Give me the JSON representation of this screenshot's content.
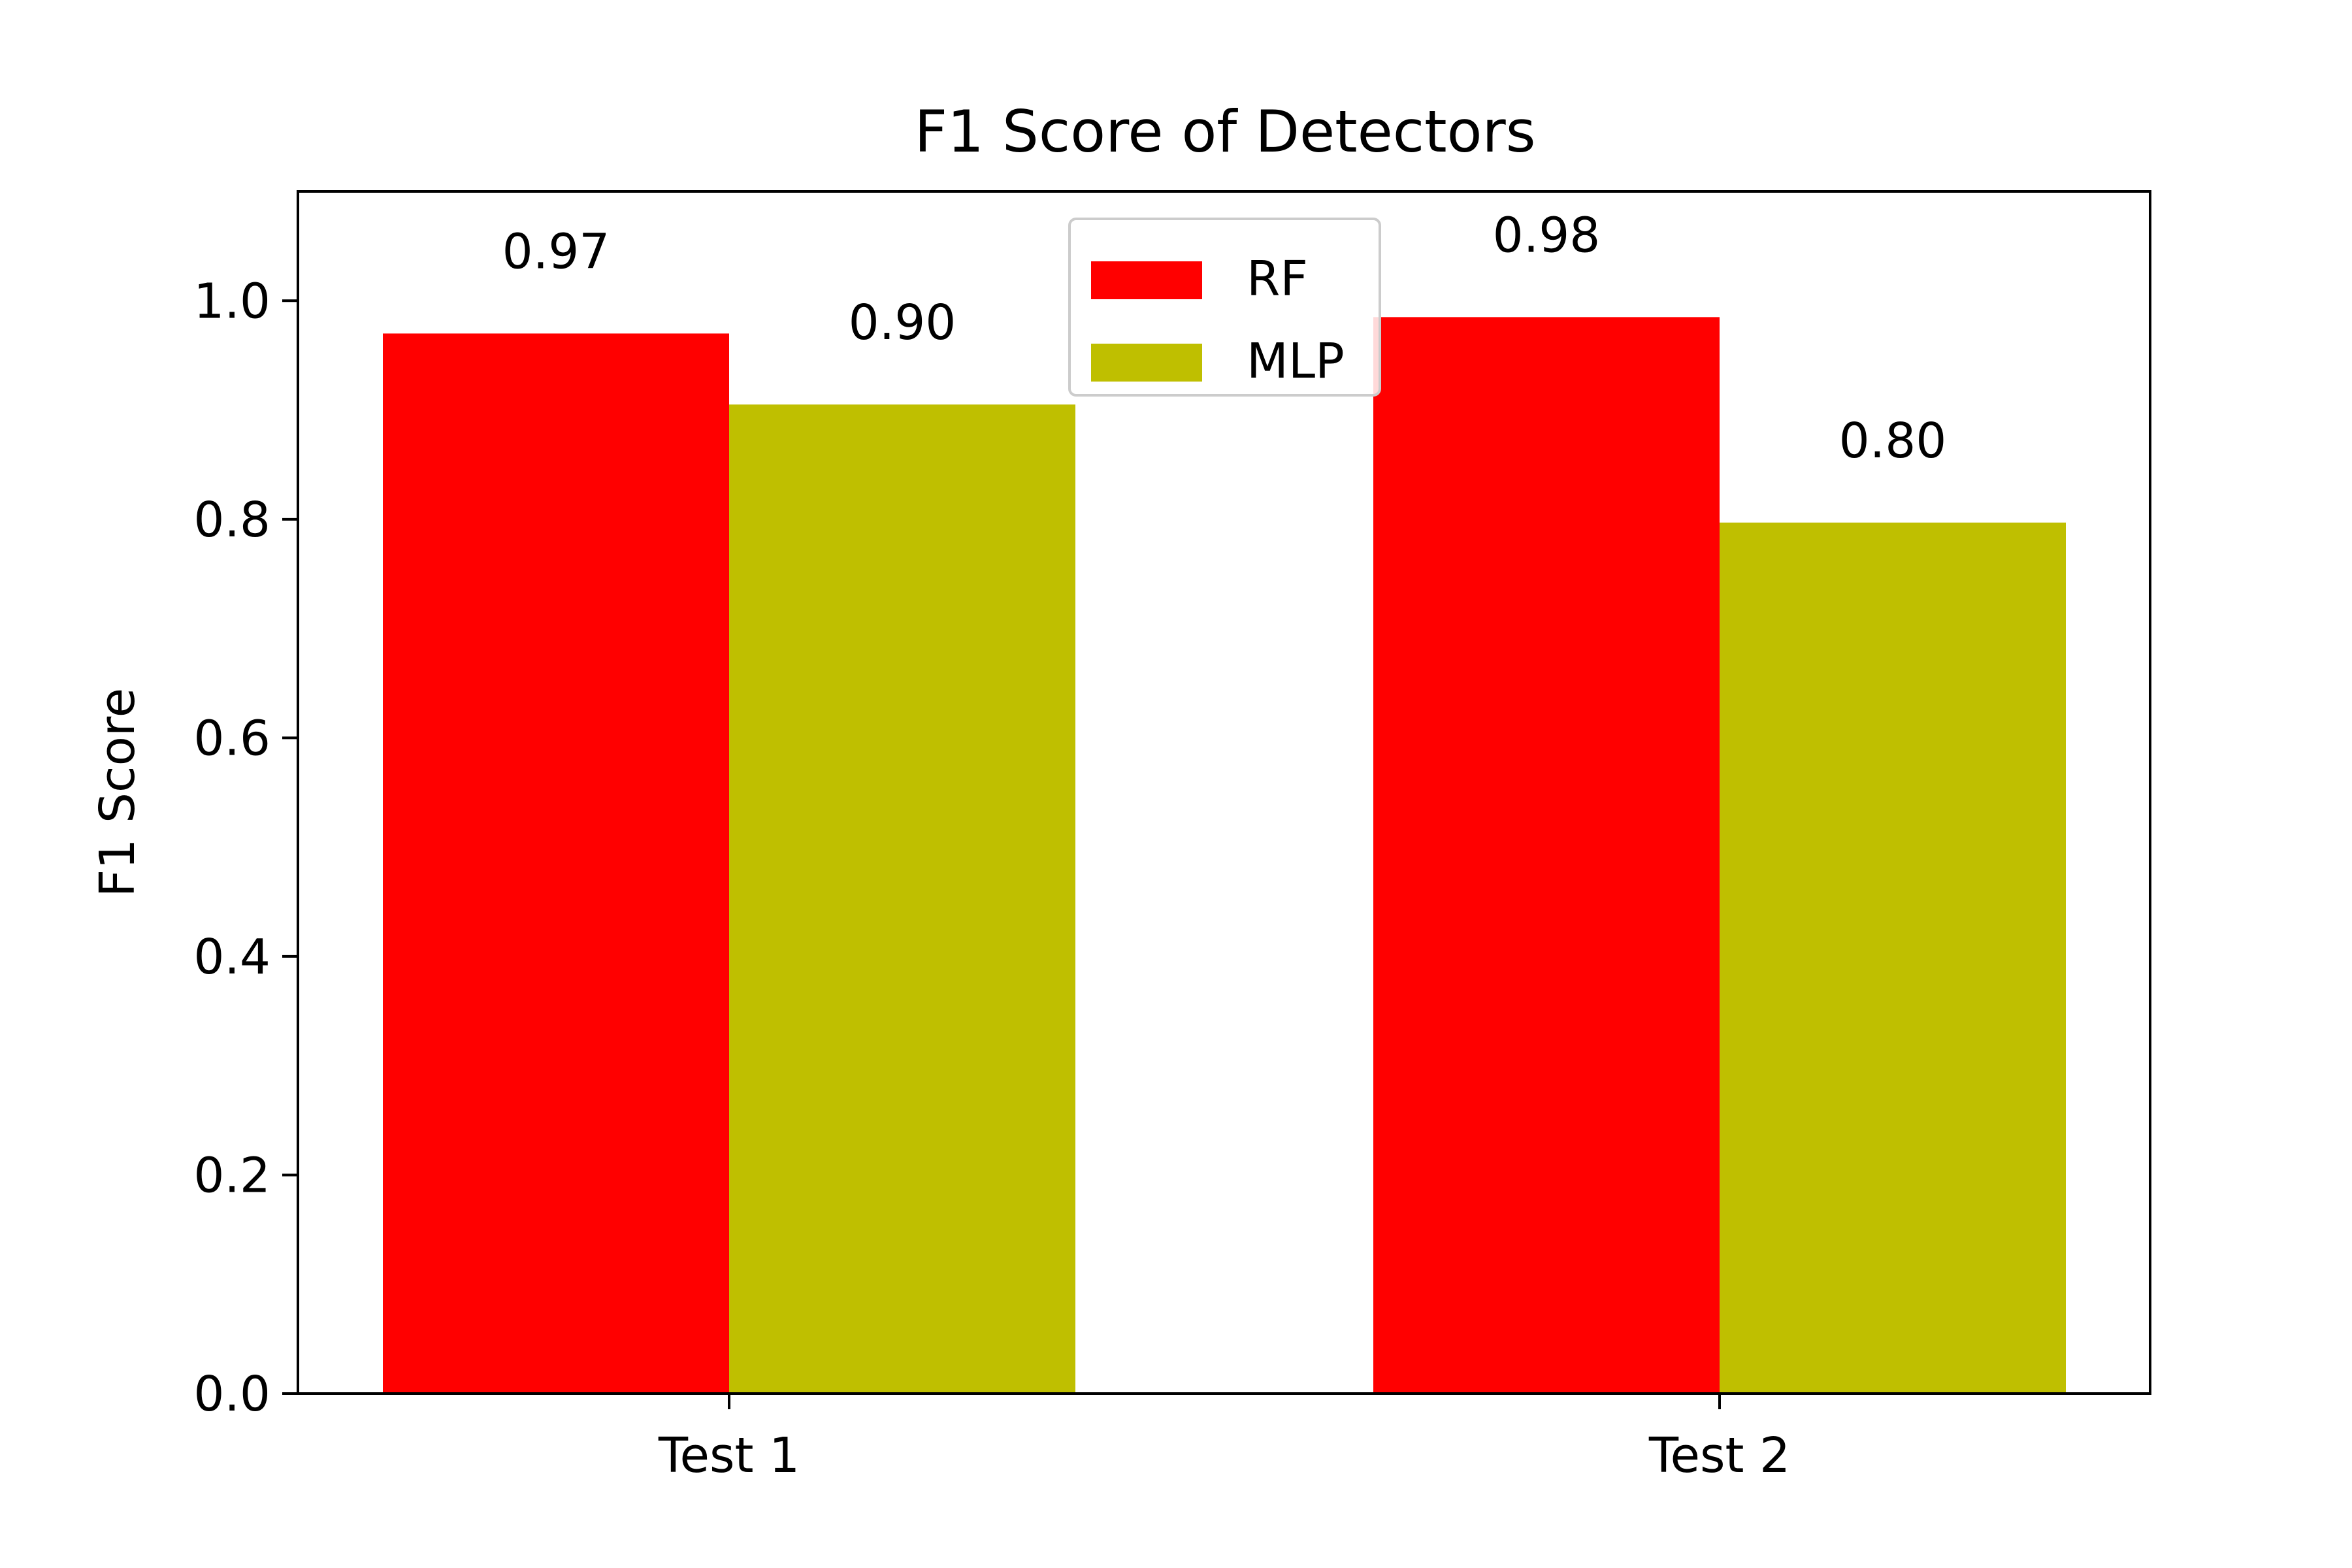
{
  "chart_data": {
    "type": "bar",
    "title": "F1 Score of Detectors",
    "xlabel": "",
    "ylabel": "F1 Score",
    "categories": [
      "Test 1",
      "Test 2"
    ],
    "series": [
      {
        "name": "RF",
        "color": "#ff0000",
        "values": [
          0.97,
          0.985
        ],
        "labels": [
          "0.97",
          "0.98"
        ]
      },
      {
        "name": "MLP",
        "color": "#bfbf00",
        "values": [
          0.905,
          0.797
        ],
        "labels": [
          "0.90",
          "0.80"
        ]
      }
    ],
    "ylim": [
      0,
      1.1
    ],
    "yticks": [
      0.0,
      0.2,
      0.4,
      0.6,
      0.8,
      1.0
    ],
    "ytick_labels": [
      "0.0",
      "0.2",
      "0.4",
      "0.6",
      "0.8",
      "1.0"
    ],
    "grid": false,
    "legend_position": "top-center"
  }
}
